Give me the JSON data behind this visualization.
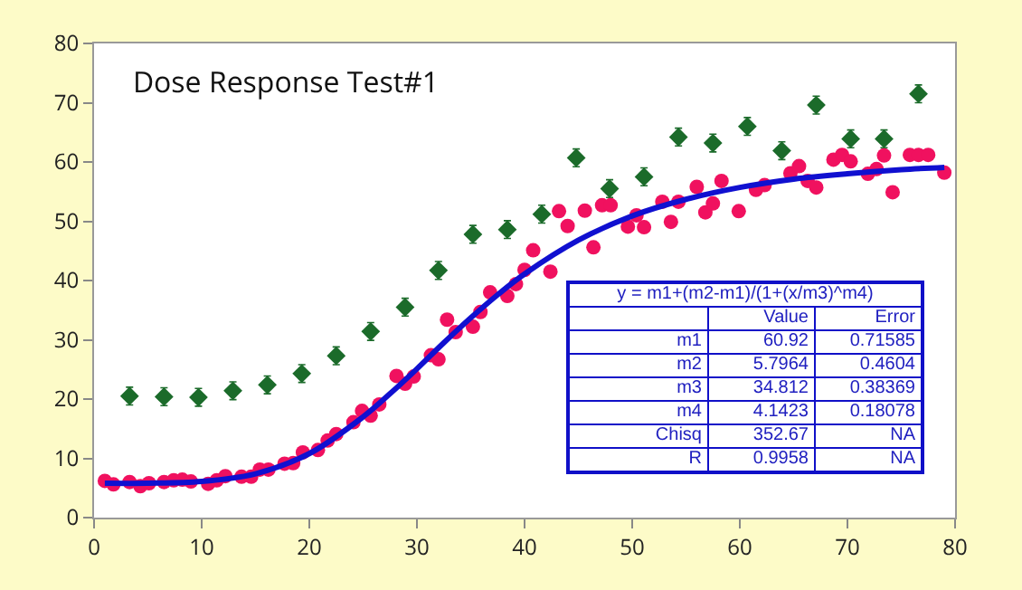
{
  "chart_data": {
    "type": "scatter",
    "title": "Dose Response Test#1",
    "xlim": [
      0,
      80
    ],
    "ylim": [
      0,
      80
    ],
    "xticks": [
      0,
      10,
      20,
      30,
      40,
      50,
      60,
      70,
      80
    ],
    "yticks": [
      0,
      10,
      20,
      30,
      40,
      50,
      60,
      70,
      80
    ],
    "grid": false,
    "series": [
      {
        "marker": "diamond",
        "color": "#1b6b2a",
        "x": [
          3.3,
          6.5,
          9.7,
          12.9,
          16.1,
          19.3,
          22.5,
          25.7,
          28.9,
          32.0,
          35.2,
          38.4,
          41.6,
          44.8,
          47.9,
          51.1,
          54.3,
          57.5,
          60.7,
          63.9,
          67.1,
          70.3,
          73.4,
          76.6
        ],
        "values": [
          20.5,
          20.4,
          20.3,
          21.4,
          22.4,
          24.3,
          27.3,
          31.4,
          35.5,
          41.7,
          47.8,
          48.6,
          51.2,
          60.7,
          55.5,
          57.5,
          64.2,
          63.2,
          66.0,
          61.9,
          69.6,
          63.9,
          63.9,
          71.5
        ],
        "errors": [
          1.5,
          1.5,
          1.5,
          1.5,
          1.5,
          1.5,
          1.5,
          1.5,
          1.5,
          1.5,
          1.5,
          1.5,
          1.5,
          1.5,
          1.5,
          1.5,
          1.5,
          1.5,
          1.5,
          1.5,
          1.5,
          1.5,
          1.5,
          1.5
        ]
      },
      {
        "marker": "circle",
        "color": "#f0115f",
        "x": [
          1.0,
          1.8,
          3.3,
          4.3,
          5.1,
          6.5,
          7.4,
          8.2,
          9.0,
          10.6,
          11.4,
          12.2,
          13.7,
          14.6,
          15.4,
          16.2,
          17.7,
          18.5,
          19.4,
          20.8,
          21.7,
          22.5,
          24.1,
          24.9,
          25.7,
          26.5,
          28.1,
          28.9,
          29.7,
          31.3,
          32.0,
          32.8,
          33.6,
          35.2,
          35.9,
          36.8,
          38.4,
          39.2,
          40.0,
          40.8,
          42.4,
          43.2,
          44.0,
          45.6,
          46.4,
          47.2,
          48.0,
          49.6,
          50.4,
          51.1,
          52.8,
          53.6,
          54.3,
          56.0,
          56.8,
          57.5,
          58.3,
          59.9,
          61.5,
          62.3,
          64.7,
          65.5,
          66.3,
          67.1,
          68.7,
          69.5,
          70.3,
          71.9,
          72.7,
          73.4,
          74.2,
          75.8,
          76.6,
          77.5,
          79.0
        ],
        "values": [
          6.2,
          5.6,
          6.0,
          5.3,
          5.8,
          6.0,
          6.3,
          6.4,
          6.1,
          5.7,
          6.3,
          7.0,
          6.9,
          6.9,
          8.1,
          8.1,
          9.1,
          9.2,
          11.0,
          11.4,
          13.0,
          14.1,
          16.1,
          18.0,
          17.2,
          19.1,
          23.9,
          22.6,
          23.8,
          27.4,
          26.7,
          33.4,
          31.3,
          32.2,
          34.7,
          38.0,
          37.4,
          39.4,
          41.8,
          45.1,
          41.5,
          51.7,
          49.2,
          51.8,
          45.6,
          52.7,
          52.7,
          49.1,
          51.0,
          49.0,
          53.3,
          49.9,
          53.3,
          55.8,
          51.5,
          53.0,
          56.8,
          51.7,
          55.3,
          56.1,
          58.1,
          59.3,
          56.8,
          55.7,
          60.4,
          61.2,
          60.1,
          58.0,
          58.8,
          61.1,
          54.9,
          61.2,
          61.2,
          61.2,
          58.2
        ]
      },
      {
        "type": "line",
        "marker": "none",
        "line_style": "solid",
        "color": "#1010d0",
        "x": [
          1,
          5,
          10,
          15,
          20,
          25,
          27.5,
          30,
          32.5,
          35,
          37.5,
          40,
          45,
          50,
          55,
          60,
          65,
          70,
          75,
          79
        ],
        "values": [
          5.8,
          5.8,
          6.1,
          7.4,
          10.8,
          17.0,
          20.9,
          25.1,
          29.5,
          33.7,
          37.6,
          41.1,
          46.8,
          50.9,
          53.7,
          55.7,
          57.1,
          58.0,
          58.7,
          59.1
        ]
      }
    ],
    "annotations": [
      "y = m1+(m2-m1)/(1+(x/m3)^m4)",
      "Value",
      "Error",
      "m1",
      "60.92",
      "0.71585",
      "m2",
      "5.7964",
      "0.4604",
      "m3",
      "34.812",
      "0.38369",
      "m4",
      "4.1423",
      "0.18078",
      "Chisq",
      "352.67",
      "NA",
      "R",
      "0.9958",
      "NA"
    ]
  }
}
